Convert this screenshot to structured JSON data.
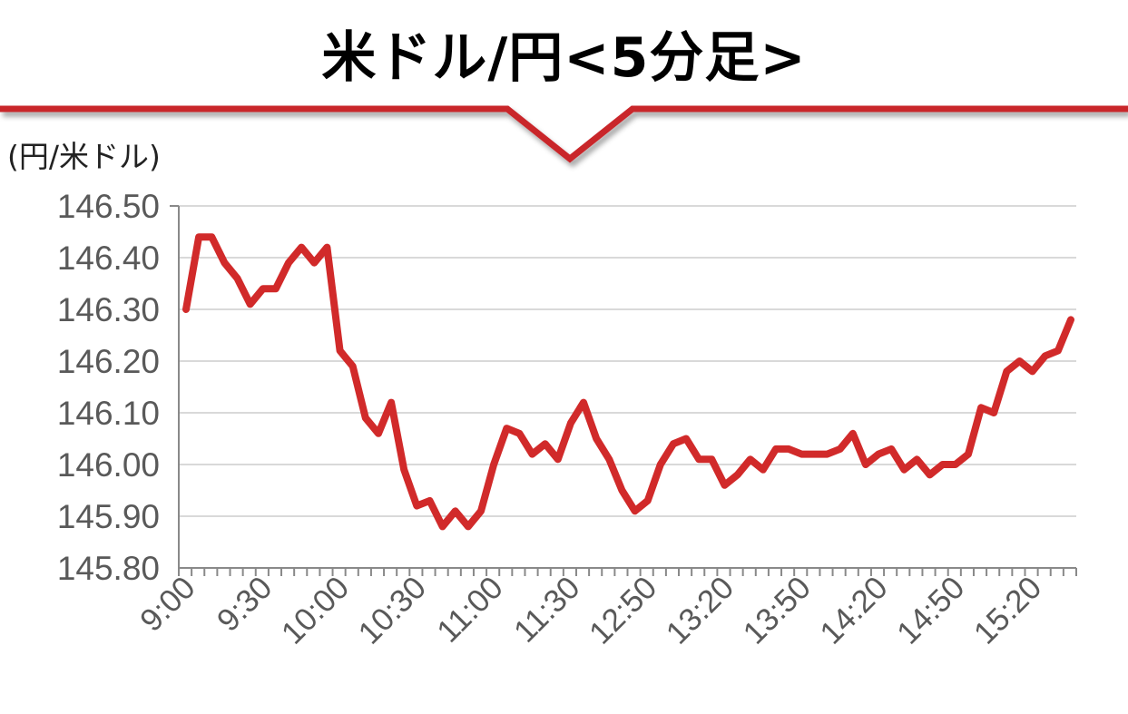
{
  "chart_data": {
    "type": "line",
    "title": "米ドル/円<5分足>",
    "ylabel": "(円/米ドル)",
    "xlabel": "",
    "ylim": [
      145.8,
      146.5
    ],
    "yticks": [
      "146.50",
      "146.40",
      "146.30",
      "146.20",
      "146.10",
      "146.00",
      "145.90",
      "145.80"
    ],
    "ytick_values": [
      146.5,
      146.4,
      146.3,
      146.2,
      146.1,
      146.0,
      145.9,
      145.8
    ],
    "xtick_labels": [
      "9:00",
      "9:30",
      "10:00",
      "10:30",
      "11:00",
      "11:30",
      "12:50",
      "13:20",
      "13:50",
      "14:20",
      "14:50",
      "15:20"
    ],
    "grid": true,
    "colors": {
      "line": "#d12a2a",
      "accent": "#c9252c",
      "grid": "#d9d9d9",
      "axis": "#898989"
    },
    "series": [
      {
        "values": [
          146.3,
          146.44,
          146.44,
          146.39,
          146.36,
          146.31,
          146.34,
          146.34,
          146.39,
          146.42,
          146.39,
          146.42,
          146.22,
          146.19,
          146.09,
          146.06,
          146.12,
          145.99,
          145.92,
          145.93,
          145.88,
          145.91,
          145.88,
          145.91,
          146.0,
          146.07,
          146.06,
          146.02,
          146.04,
          146.01,
          146.08,
          146.12,
          146.05,
          146.01,
          145.95,
          145.91,
          145.93,
          146.0,
          146.04,
          146.05,
          146.01,
          146.01,
          145.96,
          145.98,
          146.01,
          145.99,
          146.03,
          146.03,
          146.02,
          146.02,
          146.02,
          146.03,
          146.06,
          146.0,
          146.02,
          146.03,
          145.99,
          146.01,
          145.98,
          146.0,
          146.0,
          146.02,
          146.11,
          146.1,
          146.18,
          146.2,
          146.18,
          146.21,
          146.22,
          146.28
        ]
      }
    ]
  }
}
